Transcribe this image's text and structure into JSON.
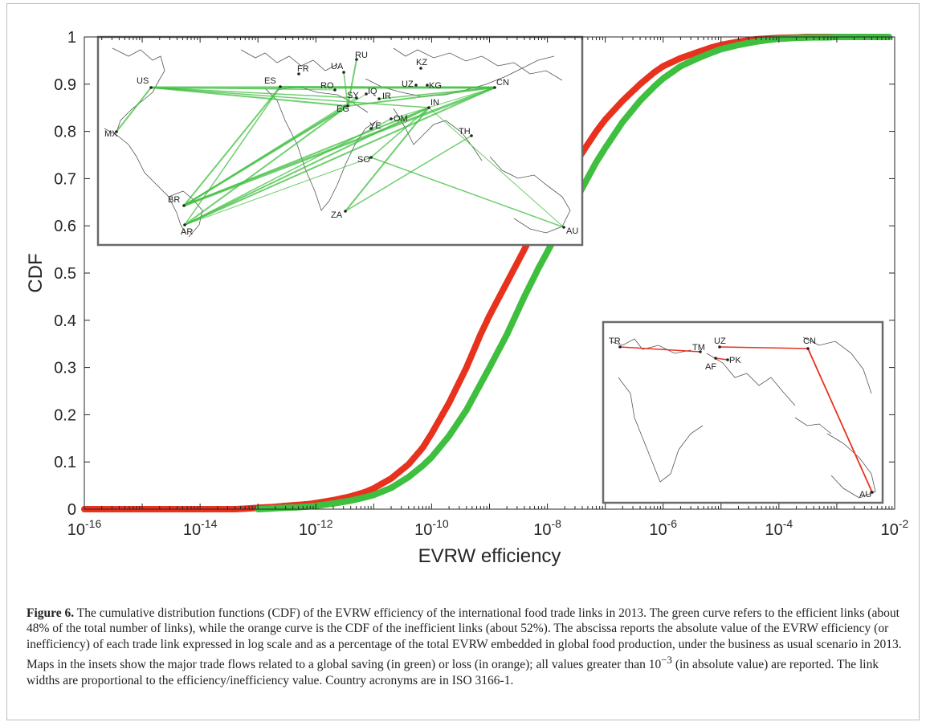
{
  "chart_data": {
    "type": "scatter",
    "xlabel": "EVRW efficiency",
    "ylabel": "CDF",
    "xscale": "log",
    "xlim": [
      1e-16,
      0.01
    ],
    "ylim": [
      0,
      1
    ],
    "x_ticks": [
      {
        "base": "10",
        "exp": "-16"
      },
      {
        "base": "10",
        "exp": "-14"
      },
      {
        "base": "10",
        "exp": "-12"
      },
      {
        "base": "10",
        "exp": "-10"
      },
      {
        "base": "10",
        "exp": "-8"
      },
      {
        "base": "10",
        "exp": "-6"
      },
      {
        "base": "10",
        "exp": "-4"
      },
      {
        "base": "10",
        "exp": "-2"
      }
    ],
    "y_ticks": [
      "0",
      "0.1",
      "0.2",
      "0.3",
      "0.4",
      "0.5",
      "0.6",
      "0.7",
      "0.8",
      "0.9",
      "1"
    ],
    "grid": false,
    "series": [
      {
        "color": "#e8321e",
        "x": [
          1e-16,
          1.2e-16,
          5e-15,
          7e-15,
          1.3e-14,
          2e-14,
          3e-14,
          4e-14,
          6e-14,
          8e-14,
          1e-13,
          1.5e-13,
          2e-13,
          3e-13,
          5e-13,
          8e-13,
          1e-12,
          2e-12,
          4e-12,
          7e-12,
          1e-11,
          2e-11,
          4e-11,
          7e-11,
          1e-10,
          2e-10,
          4e-10,
          7e-10,
          1e-09,
          2e-09,
          4e-09,
          7e-09,
          1e-08,
          2e-08,
          4e-08,
          7e-08,
          1e-07,
          2e-07,
          4e-07,
          7e-07,
          1e-06,
          2e-06,
          4e-06,
          7e-06,
          1e-05,
          2e-05,
          4e-05,
          7e-05,
          0.0001,
          0.0002,
          0.0003,
          0.0005,
          0.0007,
          0.001,
          0.002,
          0.004,
          0.006
        ],
        "y": [
          0,
          0,
          0,
          0,
          0,
          0,
          0,
          0,
          0.001,
          0.002,
          0.003,
          0.004,
          0.005,
          0.007,
          0.009,
          0.011,
          0.013,
          0.019,
          0.027,
          0.036,
          0.044,
          0.065,
          0.095,
          0.13,
          0.16,
          0.225,
          0.3,
          0.37,
          0.41,
          0.48,
          0.55,
          0.61,
          0.64,
          0.7,
          0.755,
          0.8,
          0.825,
          0.865,
          0.9,
          0.925,
          0.938,
          0.955,
          0.968,
          0.978,
          0.983,
          0.99,
          0.995,
          0.997,
          0.998,
          0.999,
          1,
          1,
          1,
          1,
          1,
          1,
          1
        ]
      },
      {
        "color": "#3fbf3f",
        "x": [
          1e-13,
          1.5e-13,
          2e-13,
          3e-13,
          5e-13,
          8e-13,
          1e-12,
          2e-12,
          4e-12,
          7e-12,
          1e-11,
          2e-11,
          4e-11,
          7e-11,
          1e-10,
          2e-10,
          4e-10,
          7e-10,
          1e-09,
          2e-09,
          4e-09,
          7e-09,
          1e-08,
          2e-08,
          4e-08,
          7e-08,
          1e-07,
          2e-07,
          4e-07,
          7e-07,
          1e-06,
          2e-06,
          4e-06,
          7e-06,
          1e-05,
          2e-05,
          4e-05,
          7e-05,
          0.0001,
          0.0002,
          0.0004,
          0.0007,
          0.001,
          0.002,
          0.004,
          0.008
        ],
        "y": [
          0,
          0.001,
          0.002,
          0.003,
          0.004,
          0.006,
          0.007,
          0.012,
          0.018,
          0.025,
          0.03,
          0.045,
          0.068,
          0.092,
          0.11,
          0.155,
          0.21,
          0.265,
          0.3,
          0.37,
          0.45,
          0.51,
          0.545,
          0.615,
          0.68,
          0.735,
          0.765,
          0.82,
          0.865,
          0.895,
          0.912,
          0.938,
          0.955,
          0.967,
          0.974,
          0.983,
          0.99,
          0.994,
          0.996,
          0.998,
          0.999,
          0.999,
          1,
          1,
          1,
          1
        ]
      }
    ],
    "inset_green": {
      "color": "#3fbf3f",
      "labels": [
        "US",
        "MX",
        "BR",
        "AR",
        "ES",
        "FR",
        "UA",
        "RU",
        "RO",
        "EG",
        "SY",
        "IQ",
        "IR",
        "YE",
        "OM",
        "SO",
        "ZA",
        "IN",
        "TH",
        "CN",
        "KZ",
        "UZ",
        "KG",
        "AU"
      ]
    },
    "inset_orange": {
      "color": "#e8321e",
      "labels": [
        "TR",
        "TM",
        "UZ",
        "AF",
        "PK",
        "CN",
        "AU"
      ]
    }
  },
  "caption": {
    "figure_label": "Figure 6.",
    "text_part1": " The cumulative distribution functions (CDF) of the EVRW efficiency of the international food trade links in 2013. The green curve refers to the efficient links (about 48% of the total number of links), while the orange curve is the CDF of the inefficient links (about 52%). The abscissa reports the absolute value of the EVRW efficiency (or inefficiency) of each trade link expressed in log scale and as a percentage of the total EVRW embedded in global food production, under the business as usual scenario in 2013. Maps in the insets show the major trade flows related to a global saving (in green) or loss (in orange); all values greater than 10",
    "text_sup": "−3",
    "text_part2": " (in absolute value) are reported. The link widths are proportional to the efficiency/inefficiency value. Country acronyms are in ISO 3166-1."
  }
}
